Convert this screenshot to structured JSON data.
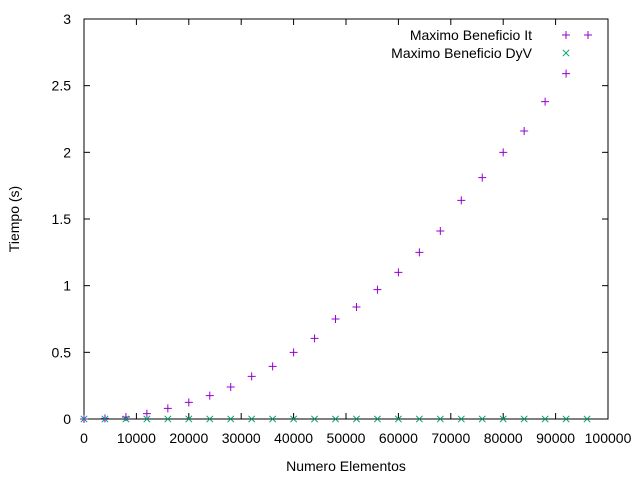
{
  "chart_data": {
    "type": "scatter",
    "title": "",
    "xlabel": "Numero Elementos",
    "ylabel": "Tiempo (s)",
    "xlim": [
      0,
      100000
    ],
    "ylim": [
      0,
      3
    ],
    "grid": false,
    "legend_position": "top-right",
    "x_ticks": [
      0,
      10000,
      20000,
      30000,
      40000,
      50000,
      60000,
      70000,
      80000,
      90000,
      100000
    ],
    "x_tick_labels": [
      "0",
      "10000",
      "20000",
      "30000",
      "40000",
      "50000",
      "60000",
      "70000",
      "80000",
      "90000",
      "100000"
    ],
    "y_ticks": [
      0,
      0.5,
      1,
      1.5,
      2,
      2.5,
      3
    ],
    "y_tick_labels": [
      "0",
      "0.5",
      "1",
      "1.5",
      "2",
      "2.5",
      "3"
    ],
    "series": [
      {
        "name": "Maximo Beneficio It",
        "marker": "plus",
        "color": "#9400d3",
        "x": [
          0,
          4000,
          8000,
          12000,
          16000,
          20000,
          24000,
          28000,
          32000,
          36000,
          40000,
          44000,
          48000,
          52000,
          56000,
          60000,
          64000,
          68000,
          72000,
          76000,
          80000,
          84000,
          88000,
          92000
        ],
        "y": [
          0,
          0.005,
          0.015,
          0.04,
          0.08,
          0.125,
          0.175,
          0.24,
          0.32,
          0.395,
          0.5,
          0.605,
          0.75,
          0.84,
          0.97,
          1.1,
          1.25,
          1.41,
          1.64,
          1.81,
          2.0,
          2.16,
          2.38,
          2.59
        ]
      },
      {
        "name": "Maximo Beneficio DyV",
        "marker": "cross",
        "color": "#009e73",
        "x": [
          0,
          4000,
          8000,
          12000,
          16000,
          20000,
          24000,
          28000,
          32000,
          36000,
          40000,
          44000,
          48000,
          52000,
          56000,
          60000,
          64000,
          68000,
          72000,
          76000,
          80000,
          84000,
          88000,
          92000,
          96000
        ],
        "y": [
          0,
          0,
          0,
          0,
          0,
          0,
          0,
          0,
          0,
          0,
          0,
          0,
          0,
          0,
          0,
          0,
          0,
          0,
          0,
          0,
          0,
          0,
          0,
          0,
          0
        ]
      }
    ]
  }
}
